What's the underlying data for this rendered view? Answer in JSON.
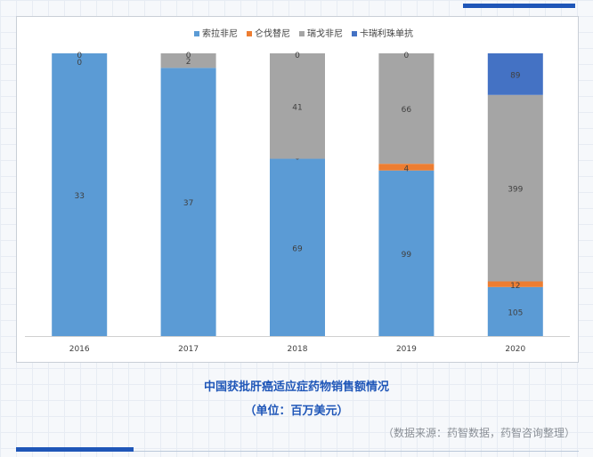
{
  "caption": {
    "title": "中国获批肝癌适应症药物销售额情况",
    "unit": "（单位：百万美元）",
    "source": "（数据来源：药智数据，药智咨询整理）"
  },
  "chart_data": {
    "type": "bar",
    "stacked": true,
    "categories": [
      "2016",
      "2017",
      "2018",
      "2019",
      "2020"
    ],
    "series": [
      {
        "name": "索拉非尼",
        "color": "#5b9bd5",
        "values": [
          33,
          37,
          69,
          99,
          105
        ],
        "labels": [
          "33",
          "37",
          "69",
          "99",
          "105"
        ]
      },
      {
        "name": "仑伐替尼",
        "color": "#ed7d31",
        "values": [
          0,
          0,
          0,
          4,
          12
        ],
        "labels": [
          "",
          "0",
          "0",
          "4",
          "12"
        ]
      },
      {
        "name": "瑞戈非尼",
        "color": "#a5a5a5",
        "values": [
          0,
          2,
          41,
          66,
          399
        ],
        "labels": [
          "0",
          "2",
          "41",
          "66",
          "399"
        ]
      },
      {
        "name": "卡瑞利珠单抗",
        "color": "#4472c4",
        "values": [
          0,
          0,
          0,
          0,
          89
        ],
        "labels": [
          "0",
          "0",
          "0",
          "0",
          "89"
        ]
      }
    ],
    "normalized": true,
    "legend_position": "top",
    "grid": false
  }
}
